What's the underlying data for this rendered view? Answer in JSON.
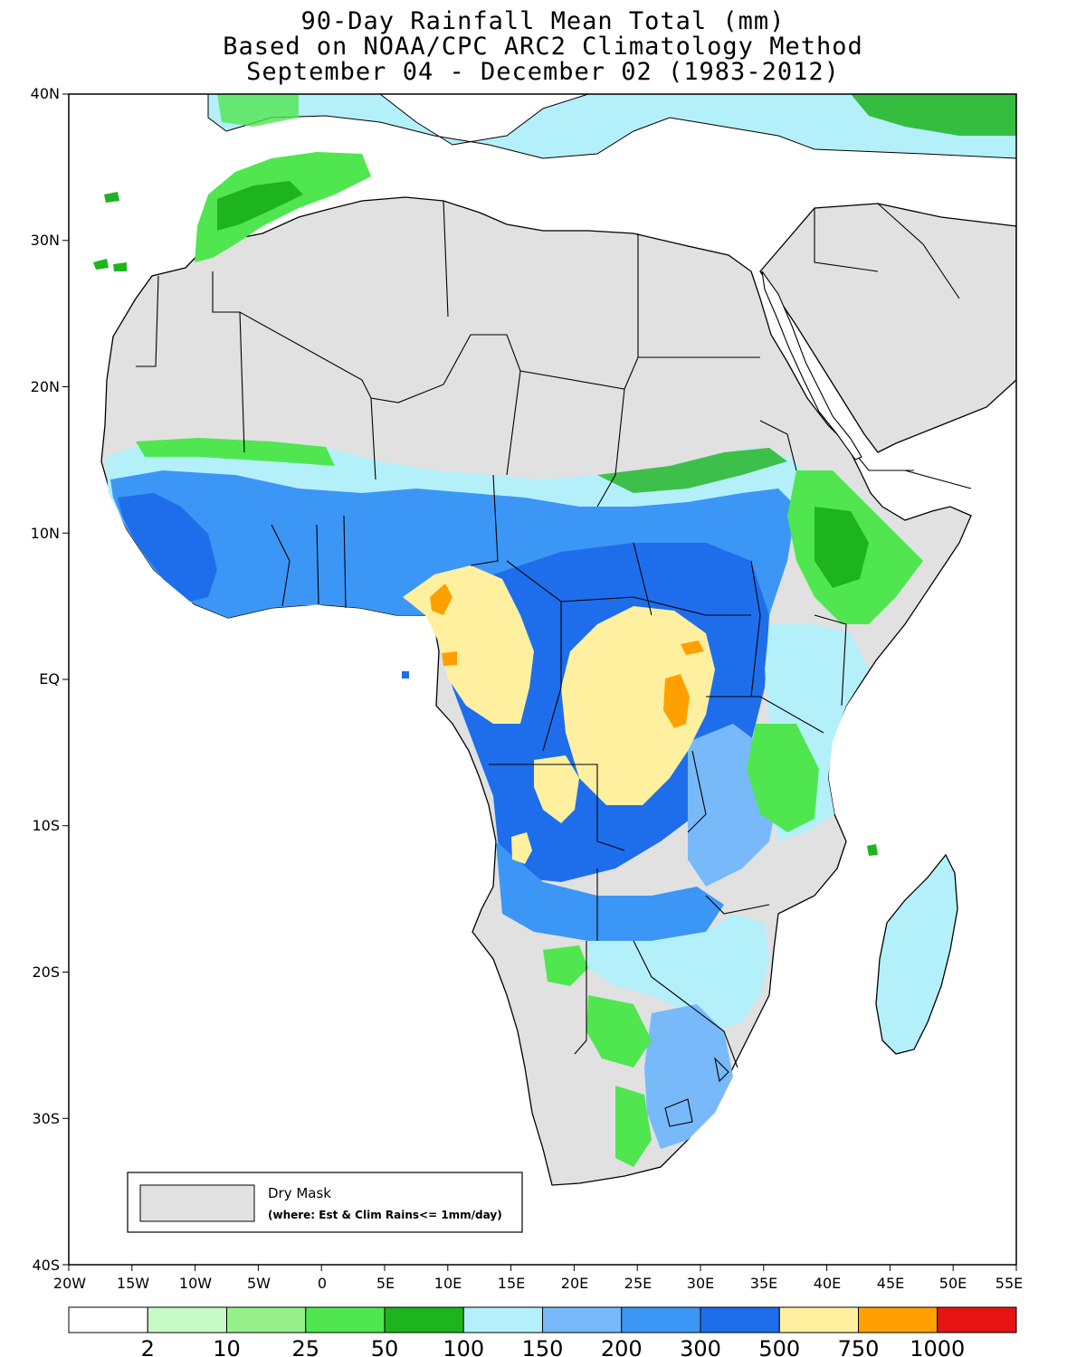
{
  "titles": {
    "line1": "90-Day Rainfall Mean Total (mm)",
    "line2": "Based on NOAA/CPC ARC2 Climatology Method",
    "line3": "September 04 - December 02 (1983-2012)"
  },
  "axes": {
    "lat_labels": [
      "40N",
      "30N",
      "20N",
      "10N",
      "EQ",
      "10S",
      "20S",
      "30S",
      "40S"
    ],
    "lon_labels": [
      "20W",
      "15W",
      "10W",
      "5W",
      "0",
      "5E",
      "10E",
      "15E",
      "20E",
      "25E",
      "30E",
      "35E",
      "40E",
      "45E",
      "50E",
      "55E"
    ]
  },
  "inset_legend": {
    "title": "Dry Mask",
    "note": "(where: Est & Clim Rains<= 1mm/day)",
    "swatch_color": "#e1e1e1"
  },
  "colorbar": {
    "colors": [
      "#ffffff",
      "#c8fac8",
      "#96f08c",
      "#50e650",
      "#1eb41e",
      "#b4f0fa",
      "#78b9fa",
      "#3c96f5",
      "#1e6eeb",
      "#fff0a0",
      "#ffa000",
      "#e61414"
    ],
    "labels": [
      "2",
      "10",
      "25",
      "50",
      "100",
      "150",
      "200",
      "300",
      "500",
      "750",
      "1000"
    ]
  },
  "palette": {
    "dry": "#e1e1e1",
    "ocean": "#ffffff",
    "border": "#000000"
  }
}
